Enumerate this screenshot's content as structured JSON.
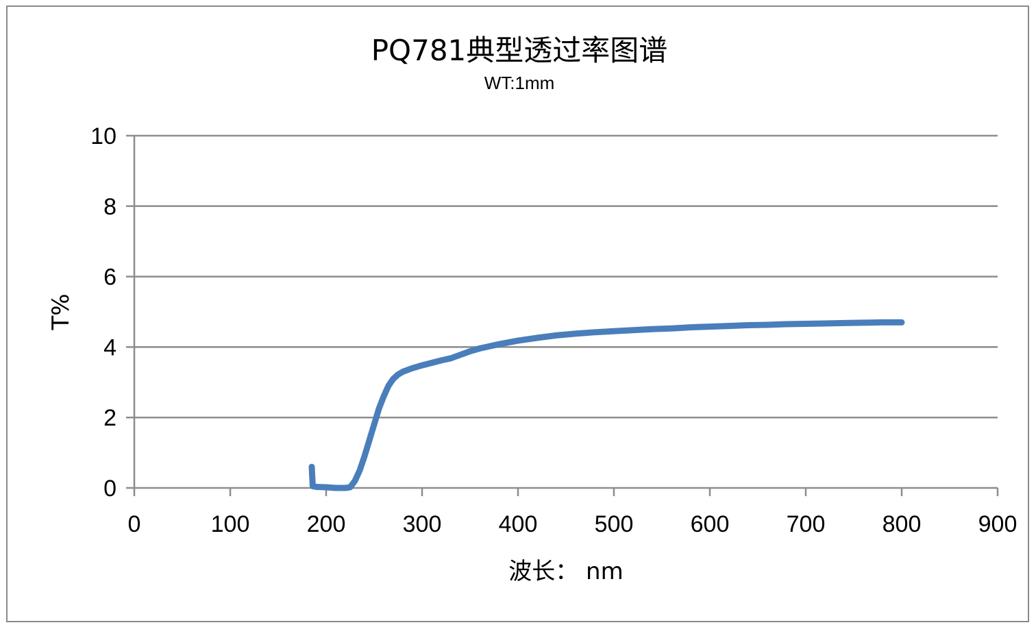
{
  "chart_data": {
    "type": "line",
    "title": "PQ781典型透过率图谱",
    "subtitle": "WT:1mm",
    "xlabel": "波长： nm",
    "ylabel": "T%",
    "xlim": [
      0,
      900
    ],
    "ylim": [
      0,
      10
    ],
    "x_ticks": [
      "0",
      "100",
      "200",
      "300",
      "400",
      "500",
      "600",
      "700",
      "800",
      "900"
    ],
    "y_ticks": [
      "0",
      "2",
      "4",
      "6",
      "8",
      "10"
    ],
    "grid": "horizontal",
    "legend": "none",
    "series": [
      {
        "color": "#4a7ebb",
        "points": [
          [
            185,
            0.6
          ],
          [
            186,
            0.05
          ],
          [
            190,
            0.03
          ],
          [
            200,
            0.02
          ],
          [
            210,
            0.0
          ],
          [
            220,
            0.0
          ],
          [
            225,
            0.02
          ],
          [
            230,
            0.2
          ],
          [
            235,
            0.5
          ],
          [
            240,
            0.9
          ],
          [
            245,
            1.35
          ],
          [
            250,
            1.8
          ],
          [
            255,
            2.25
          ],
          [
            260,
            2.6
          ],
          [
            265,
            2.9
          ],
          [
            270,
            3.1
          ],
          [
            275,
            3.22
          ],
          [
            280,
            3.3
          ],
          [
            290,
            3.4
          ],
          [
            300,
            3.48
          ],
          [
            310,
            3.55
          ],
          [
            320,
            3.62
          ],
          [
            330,
            3.68
          ],
          [
            340,
            3.78
          ],
          [
            350,
            3.88
          ],
          [
            360,
            3.96
          ],
          [
            370,
            4.02
          ],
          [
            380,
            4.08
          ],
          [
            390,
            4.13
          ],
          [
            400,
            4.18
          ],
          [
            420,
            4.26
          ],
          [
            440,
            4.33
          ],
          [
            460,
            4.38
          ],
          [
            480,
            4.42
          ],
          [
            500,
            4.45
          ],
          [
            520,
            4.48
          ],
          [
            540,
            4.51
          ],
          [
            560,
            4.53
          ],
          [
            580,
            4.56
          ],
          [
            600,
            4.58
          ],
          [
            620,
            4.6
          ],
          [
            640,
            4.62
          ],
          [
            660,
            4.63
          ],
          [
            680,
            4.65
          ],
          [
            700,
            4.66
          ],
          [
            720,
            4.67
          ],
          [
            740,
            4.68
          ],
          [
            760,
            4.69
          ],
          [
            780,
            4.7
          ],
          [
            800,
            4.7
          ]
        ]
      }
    ]
  }
}
